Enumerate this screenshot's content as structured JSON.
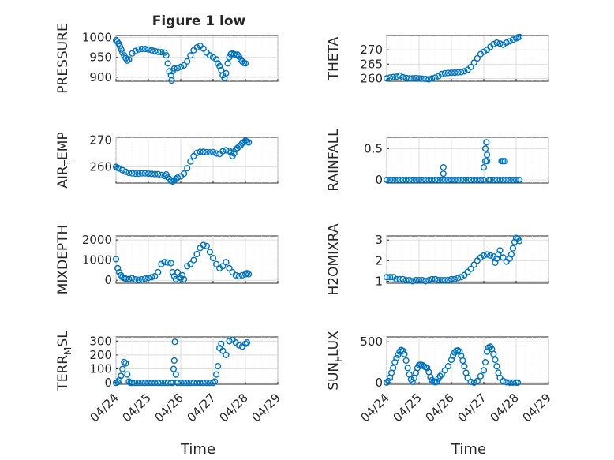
{
  "figure": {
    "title": "Figure 1 low",
    "xlabel": "Time"
  },
  "colors": {
    "marker": "#0072BD",
    "axis": "#262626",
    "grid": "#d6d6d6"
  },
  "chart_data": [
    {
      "type": "scatter",
      "ylabel": "PRESSURE",
      "ylim": [
        890,
        1005
      ],
      "yticks": [
        "900",
        "950",
        "1000"
      ],
      "ytick_values": [
        900,
        950,
        1000
      ],
      "xlim": [
        0,
        5
      ],
      "xticks": [],
      "grid": true,
      "series": [
        {
          "x": [
            0.0,
            0.04,
            0.08,
            0.12,
            0.16,
            0.2,
            0.25,
            0.3,
            0.35,
            0.4,
            0.5,
            0.6,
            0.7,
            0.8,
            0.9,
            1.0,
            1.1,
            1.2,
            1.3,
            1.4,
            1.5,
            1.55,
            1.6,
            1.65,
            1.7,
            1.72,
            1.75,
            1.8,
            1.9,
            2.0,
            2.1,
            2.2,
            2.3,
            2.4,
            2.5,
            2.6,
            2.7,
            2.8,
            2.9,
            3.0,
            3.1,
            3.15,
            3.2,
            3.25,
            3.3,
            3.35,
            3.4,
            3.45,
            3.5,
            3.55,
            3.6,
            3.65,
            3.7,
            3.75,
            3.8,
            3.85,
            3.9,
            3.95,
            4.0
          ],
          "y": [
            993,
            990,
            985,
            978,
            970,
            962,
            955,
            948,
            942,
            945,
            960,
            966,
            970,
            971,
            971,
            970,
            968,
            966,
            964,
            963,
            962,
            955,
            935,
            915,
            905,
            892,
            915,
            922,
            923,
            926,
            930,
            940,
            955,
            968,
            975,
            979,
            972,
            962,
            955,
            950,
            945,
            935,
            928,
            918,
            905,
            898,
            910,
            935,
            950,
            958,
            960,
            958,
            956,
            957,
            952,
            945,
            940,
            936,
            935
          ]
        }
      ]
    },
    {
      "type": "scatter",
      "ylabel": "THETA",
      "ylim": [
        259,
        275
      ],
      "yticks": [
        "260",
        "265",
        "270"
      ],
      "ytick_values": [
        260,
        265,
        270
      ],
      "xlim": [
        0,
        5
      ],
      "xticks": [],
      "grid": true,
      "series": [
        {
          "x": [
            0.0,
            0.1,
            0.2,
            0.3,
            0.4,
            0.5,
            0.6,
            0.7,
            0.8,
            0.9,
            1.0,
            1.1,
            1.2,
            1.3,
            1.4,
            1.5,
            1.6,
            1.7,
            1.8,
            1.9,
            2.0,
            2.1,
            2.2,
            2.3,
            2.4,
            2.5,
            2.6,
            2.7,
            2.8,
            2.9,
            3.0,
            3.1,
            3.2,
            3.3,
            3.4,
            3.5,
            3.6,
            3.7,
            3.8,
            3.9,
            4.0,
            4.05,
            4.1
          ],
          "y": [
            260.0,
            260.3,
            260.5,
            260.6,
            261.0,
            260.4,
            260.2,
            260.0,
            260.0,
            260.1,
            260.0,
            259.9,
            259.8,
            259.7,
            260.0,
            260.3,
            260.8,
            261.5,
            261.8,
            261.9,
            262.0,
            262.0,
            262.1,
            262.2,
            262.5,
            263.0,
            264.0,
            265.5,
            267.0,
            268.5,
            269.3,
            270.0,
            271.0,
            272.0,
            272.5,
            272.2,
            271.8,
            272.5,
            273.0,
            273.5,
            274.0,
            274.3,
            274.5
          ]
        }
      ]
    },
    {
      "type": "scatter",
      "ylabel": "AIR_TEMP",
      "ylim": [
        254,
        271
      ],
      "yticks": [
        "260",
        "270"
      ],
      "ytick_values": [
        260,
        270
      ],
      "xlim": [
        0,
        5
      ],
      "xticks": [],
      "grid": true,
      "series": [
        {
          "x": [
            0.0,
            0.05,
            0.1,
            0.2,
            0.3,
            0.4,
            0.5,
            0.6,
            0.7,
            0.8,
            0.9,
            1.0,
            1.1,
            1.2,
            1.3,
            1.4,
            1.5,
            1.55,
            1.6,
            1.65,
            1.7,
            1.75,
            1.8,
            1.85,
            1.9,
            2.0,
            2.1,
            2.2,
            2.3,
            2.4,
            2.5,
            2.6,
            2.7,
            2.8,
            2.9,
            3.0,
            3.1,
            3.2,
            3.3,
            3.4,
            3.5,
            3.55,
            3.6,
            3.65,
            3.7,
            3.75,
            3.8,
            3.85,
            3.9,
            3.95,
            4.0,
            4.05,
            4.1
          ],
          "y": [
            260.0,
            259.7,
            259.4,
            258.8,
            258.2,
            257.8,
            257.6,
            257.5,
            257.5,
            257.6,
            257.6,
            257.5,
            257.4,
            257.3,
            257.3,
            257.0,
            256.6,
            257.2,
            256.2,
            255.5,
            255.0,
            254.6,
            255.0,
            255.5,
            256.0,
            256.5,
            257.5,
            259.5,
            262.0,
            264.0,
            265.2,
            265.6,
            265.6,
            265.5,
            265.4,
            265.5,
            265.0,
            264.8,
            265.8,
            266.2,
            266.0,
            265.3,
            264.0,
            265.0,
            266.5,
            267.0,
            267.5,
            268.0,
            268.8,
            269.2,
            269.7,
            269.4,
            269.1
          ]
        }
      ]
    },
    {
      "type": "scatter",
      "ylabel": "RAINFALL",
      "ylim": [
        -0.05,
        0.68
      ],
      "yticks": [
        "0",
        "0.5"
      ],
      "ytick_values": [
        0,
        0.5
      ],
      "xlim": [
        0,
        5
      ],
      "xticks": [],
      "grid": true,
      "series": [
        {
          "x": [
            0.0,
            0.1,
            0.2,
            0.3,
            0.4,
            0.5,
            0.6,
            0.7,
            0.8,
            0.9,
            1.0,
            1.1,
            1.2,
            1.3,
            1.4,
            1.5,
            1.6,
            1.7,
            1.75,
            1.75,
            1.8,
            1.9,
            2.0,
            2.1,
            2.2,
            2.3,
            2.4,
            2.5,
            2.6,
            2.7,
            2.8,
            2.9,
            3.0,
            3.0,
            3.05,
            3.05,
            3.08,
            3.1,
            3.1,
            3.15,
            3.2,
            3.3,
            3.4,
            3.5,
            3.55,
            3.6,
            3.6,
            3.65,
            3.7,
            3.8,
            3.9,
            4.0,
            4.1
          ],
          "y": [
            0,
            0,
            0,
            0,
            0,
            0,
            0,
            0,
            0,
            0,
            0,
            0,
            0,
            0,
            0,
            0,
            0,
            0,
            0.1,
            0.2,
            0,
            0,
            0,
            0,
            0,
            0,
            0,
            0,
            0,
            0,
            0,
            0,
            0,
            0.2,
            0.3,
            0.5,
            0.6,
            0.3,
            0.4,
            0,
            0,
            0,
            0,
            0,
            0.3,
            0.3,
            0,
            0.3,
            0,
            0,
            0,
            0,
            0
          ]
        }
      ]
    },
    {
      "type": "scatter",
      "ylabel": "MIXDEPTH",
      "ylim": [
        -150,
        2200
      ],
      "yticks": [
        "0",
        "1000",
        "2000"
      ],
      "ytick_values": [
        0,
        1000,
        2000
      ],
      "xlim": [
        0,
        5
      ],
      "xticks": [],
      "grid": true,
      "series": [
        {
          "x": [
            0.0,
            0.05,
            0.1,
            0.15,
            0.2,
            0.25,
            0.3,
            0.4,
            0.5,
            0.6,
            0.7,
            0.8,
            0.9,
            1.0,
            1.1,
            1.2,
            1.3,
            1.4,
            1.5,
            1.6,
            1.7,
            1.75,
            1.8,
            1.85,
            1.9,
            1.95,
            2.0,
            2.05,
            2.1,
            2.2,
            2.3,
            2.4,
            2.5,
            2.6,
            2.7,
            2.8,
            2.9,
            3.0,
            3.1,
            3.2,
            3.3,
            3.4,
            3.5,
            3.6,
            3.7,
            3.8,
            3.9,
            4.0,
            4.05,
            4.1
          ],
          "y": [
            1050,
            600,
            400,
            250,
            150,
            100,
            80,
            60,
            100,
            40,
            20,
            40,
            80,
            120,
            150,
            200,
            400,
            800,
            900,
            880,
            850,
            400,
            200,
            50,
            400,
            150,
            100,
            250,
            50,
            700,
            800,
            1000,
            1300,
            1600,
            1750,
            1700,
            1400,
            1100,
            800,
            600,
            700,
            900,
            600,
            400,
            250,
            200,
            250,
            300,
            350,
            300
          ]
        }
      ]
    },
    {
      "type": "scatter",
      "ylabel": "H2OMIXRA",
      "ylim": [
        0.9,
        3.2
      ],
      "yticks": [
        "1",
        "2",
        "3"
      ],
      "ytick_values": [
        1,
        2,
        3
      ],
      "xlim": [
        0,
        5
      ],
      "xticks": [],
      "grid": true,
      "series": [
        {
          "x": [
            0.0,
            0.1,
            0.2,
            0.3,
            0.4,
            0.5,
            0.6,
            0.7,
            0.8,
            0.9,
            1.0,
            1.1,
            1.2,
            1.3,
            1.4,
            1.5,
            1.6,
            1.7,
            1.8,
            1.9,
            2.0,
            2.1,
            2.2,
            2.3,
            2.4,
            2.5,
            2.6,
            2.7,
            2.8,
            2.9,
            3.0,
            3.1,
            3.2,
            3.3,
            3.35,
            3.4,
            3.45,
            3.5,
            3.6,
            3.7,
            3.8,
            3.85,
            3.9,
            3.95,
            4.0,
            4.05,
            4.1
          ],
          "y": [
            1.2,
            1.2,
            1.2,
            1.1,
            1.1,
            1.1,
            1.05,
            1.05,
            1.0,
            1.05,
            1.05,
            1.05,
            1.0,
            1.05,
            1.1,
            1.1,
            1.05,
            1.05,
            1.05,
            1.05,
            1.1,
            1.1,
            1.15,
            1.2,
            1.3,
            1.45,
            1.6,
            1.8,
            2.0,
            2.15,
            2.25,
            2.3,
            2.25,
            2.2,
            1.9,
            2.1,
            2.3,
            2.5,
            2.15,
            1.95,
            2.1,
            2.3,
            2.6,
            2.9,
            3.1,
            3.05,
            2.95
          ]
        }
      ]
    },
    {
      "type": "scatter",
      "ylabel": "TERR_MSL",
      "ylim": [
        -10,
        330
      ],
      "yticks": [
        "0",
        "100",
        "200",
        "300"
      ],
      "ytick_values": [
        0,
        100,
        200,
        300
      ],
      "xlim": [
        0,
        5
      ],
      "xticks": [
        "04/24",
        "04/25",
        "04/26",
        "04/27",
        "04/28",
        "04/29"
      ],
      "grid": true,
      "series": [
        {
          "x": [
            0.0,
            0.05,
            0.1,
            0.15,
            0.2,
            0.25,
            0.3,
            0.35,
            0.4,
            0.45,
            0.5,
            0.6,
            0.7,
            0.8,
            0.9,
            1.0,
            1.1,
            1.2,
            1.3,
            1.4,
            1.5,
            1.6,
            1.7,
            1.75,
            1.78,
            1.8,
            1.82,
            1.85,
            1.9,
            2.0,
            2.1,
            2.2,
            2.3,
            2.4,
            2.5,
            2.6,
            2.7,
            2.8,
            2.9,
            3.0,
            3.05,
            3.1,
            3.15,
            3.2,
            3.25,
            3.3,
            3.4,
            3.5,
            3.6,
            3.7,
            3.8,
            3.9,
            4.0,
            4.05
          ],
          "y": [
            0,
            5,
            20,
            50,
            100,
            150,
            140,
            60,
            10,
            0,
            0,
            0,
            0,
            0,
            0,
            0,
            0,
            0,
            0,
            0,
            0,
            0,
            0,
            0,
            100,
            160,
            295,
            60,
            0,
            0,
            0,
            0,
            0,
            0,
            0,
            0,
            0,
            0,
            0,
            0,
            10,
            60,
            120,
            250,
            280,
            230,
            200,
            300,
            310,
            290,
            270,
            260,
            280,
            290
          ]
        }
      ]
    },
    {
      "type": "scatter",
      "ylabel": "SUN_FLUX",
      "ylim": [
        -20,
        560
      ],
      "yticks": [
        "0",
        "500"
      ],
      "ytick_values": [
        0,
        500
      ],
      "xlim": [
        0,
        5
      ],
      "xticks": [
        "04/24",
        "04/25",
        "04/26",
        "04/27",
        "04/28",
        "04/29"
      ],
      "grid": true,
      "series": [
        {
          "x": [
            0.0,
            0.05,
            0.1,
            0.15,
            0.2,
            0.25,
            0.3,
            0.35,
            0.4,
            0.45,
            0.5,
            0.55,
            0.6,
            0.65,
            0.7,
            0.75,
            0.8,
            0.85,
            0.9,
            0.95,
            1.0,
            1.05,
            1.1,
            1.15,
            1.2,
            1.25,
            1.3,
            1.35,
            1.4,
            1.45,
            1.5,
            1.55,
            1.6,
            1.65,
            1.7,
            1.8,
            1.9,
            2.0,
            2.05,
            2.1,
            2.15,
            2.2,
            2.25,
            2.3,
            2.35,
            2.4,
            2.45,
            2.5,
            2.6,
            2.7,
            2.8,
            2.9,
            3.0,
            3.05,
            3.1,
            3.15,
            3.2,
            3.25,
            3.3,
            3.35,
            3.4,
            3.45,
            3.5,
            3.6,
            3.7,
            3.8,
            3.9,
            4.0,
            4.05
          ],
          "y": [
            0,
            20,
            60,
            120,
            180,
            250,
            300,
            340,
            380,
            400,
            390,
            350,
            270,
            180,
            100,
            40,
            10,
            60,
            120,
            180,
            215,
            220,
            215,
            200,
            190,
            180,
            130,
            70,
            30,
            10,
            5,
            10,
            50,
            80,
            100,
            150,
            200,
            280,
            330,
            370,
            390,
            395,
            380,
            330,
            270,
            200,
            120,
            60,
            10,
            0,
            20,
            80,
            150,
            250,
            380,
            430,
            440,
            410,
            350,
            280,
            200,
            120,
            60,
            20,
            5,
            0,
            0,
            0,
            0
          ]
        }
      ]
    }
  ]
}
